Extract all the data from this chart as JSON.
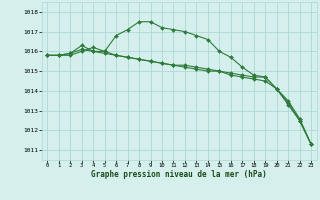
{
  "xlabel": "Graphe pression niveau de la mer (hPa)",
  "background_color": "#d5f0ec",
  "grid_color": "#aed8d3",
  "line_color": "#2d7a3a",
  "ylim": [
    1010.5,
    1018.5
  ],
  "xlim": [
    -0.5,
    23.5
  ],
  "yticks": [
    1011,
    1012,
    1013,
    1014,
    1015,
    1016,
    1017,
    1018
  ],
  "xticks": [
    0,
    1,
    2,
    3,
    4,
    5,
    6,
    7,
    8,
    9,
    10,
    11,
    12,
    13,
    14,
    15,
    16,
    17,
    18,
    19,
    20,
    21,
    22,
    23
  ],
  "series": [
    [
      1015.8,
      1015.8,
      1015.8,
      1016.0,
      1016.2,
      1016.0,
      1016.8,
      1017.1,
      1017.5,
      1017.5,
      1017.2,
      1017.1,
      1017.0,
      1016.8,
      1016.6,
      1016.0,
      1015.7,
      1015.2,
      1014.8,
      1014.7,
      1014.1,
      1013.3,
      1012.5,
      1011.3
    ],
    [
      1015.8,
      1015.8,
      1015.9,
      1016.3,
      1016.0,
      1016.0,
      1015.8,
      1015.7,
      1015.6,
      1015.5,
      1015.4,
      1015.3,
      1015.2,
      1015.1,
      1015.0,
      1015.0,
      1014.8,
      1014.7,
      1014.6,
      1014.5,
      1014.1,
      1013.4,
      1012.5,
      1011.3
    ],
    [
      1015.8,
      1015.8,
      1015.9,
      1016.1,
      1016.0,
      1015.9,
      1015.8,
      1015.7,
      1015.6,
      1015.5,
      1015.4,
      1015.3,
      1015.3,
      1015.2,
      1015.1,
      1015.0,
      1014.9,
      1014.8,
      1014.7,
      1014.7,
      1014.1,
      1013.5,
      1012.6,
      1011.3
    ]
  ]
}
